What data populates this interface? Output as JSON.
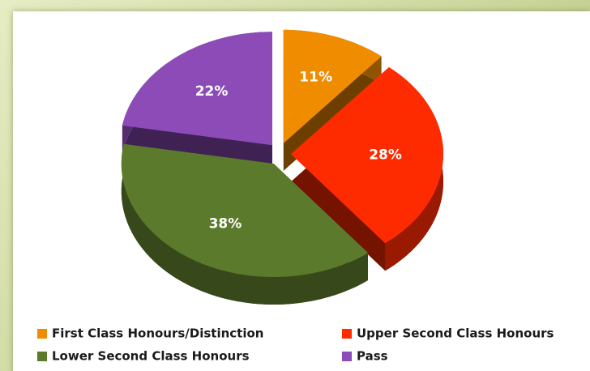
{
  "chart_data": {
    "type": "pie",
    "categories": [
      "First Class Honours/Distinction",
      "Upper Second Class Honours",
      "Lower Second Class Honours",
      "Pass"
    ],
    "values": [
      11,
      28,
      38,
      22
    ],
    "value_labels": [
      "11%",
      "28%",
      "38%",
      "22%"
    ],
    "colors": [
      "#f08c00",
      "#ff2b00",
      "#5b7a2c",
      "#8d4bb8"
    ]
  }
}
